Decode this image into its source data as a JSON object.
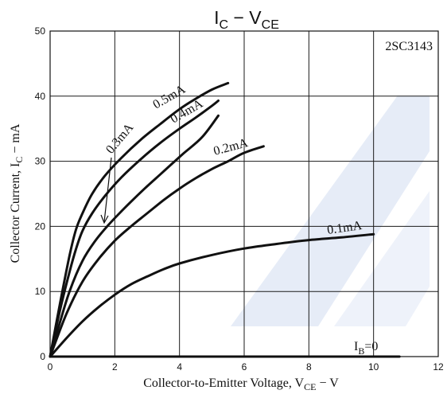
{
  "chart_data": {
    "type": "line",
    "title": "I_C − V_CE",
    "title_parts": {
      "main1": "I",
      "sub1": "C",
      "sep": " − ",
      "main2": "V",
      "sub2": "CE"
    },
    "part_number": "2SC3143",
    "xlabel_parts": {
      "main": "Collector-to-Emitter Voltage, V",
      "sub": "CE",
      "unit": " − V"
    },
    "ylabel_parts": {
      "main": "Collector Current, I",
      "sub": "C",
      "unit": " − mA"
    },
    "xlim": [
      0,
      12
    ],
    "ylim": [
      0,
      50
    ],
    "xticks": [
      "0",
      "2",
      "4",
      "6",
      "8",
      "10",
      "12"
    ],
    "yticks": [
      "0",
      "10",
      "20",
      "30",
      "40",
      "50"
    ],
    "grid": true,
    "series": [
      {
        "name": "0.5mA",
        "x": [
          0,
          0.3,
          0.6,
          0.8,
          1.0,
          1.3,
          1.7,
          2.2,
          2.8,
          3.4,
          4.0,
          4.5,
          5.0,
          5.5
        ],
        "y": [
          0,
          8,
          15.5,
          19.5,
          22,
          25,
          27.8,
          30.5,
          33.3,
          35.7,
          38,
          39.6,
          41,
          42
        ]
      },
      {
        "name": "0.4mA",
        "x": [
          0,
          0.3,
          0.6,
          0.8,
          1.0,
          1.3,
          1.7,
          2.2,
          2.8,
          3.4,
          4.0,
          4.5,
          5.0,
          5.2
        ],
        "y": [
          0,
          7,
          13,
          16.5,
          19.3,
          22,
          24.7,
          27.5,
          30.3,
          32.8,
          35,
          36.7,
          38.5,
          39.3
        ]
      },
      {
        "name": "0.3mA",
        "x": [
          0,
          0.3,
          0.6,
          1.0,
          1.4,
          1.8,
          2.3,
          2.9,
          3.5,
          4.1,
          4.7,
          5.2
        ],
        "y": [
          0,
          5.2,
          10,
          14.7,
          17.8,
          20.2,
          22.8,
          25.7,
          28.4,
          31.1,
          33.7,
          37
        ]
      },
      {
        "name": "0.2mA",
        "x": [
          0,
          0.5,
          1.0,
          1.5,
          2.0,
          2.5,
          3.0,
          3.5,
          4.0,
          4.5,
          5.0,
          5.5,
          6.0,
          6.6
        ],
        "y": [
          0,
          6.5,
          11.5,
          15,
          17.8,
          20,
          22,
          24,
          25.8,
          27.4,
          28.8,
          30,
          31.3,
          32.3
        ]
      },
      {
        "name": "0.1mA",
        "x": [
          0,
          0.5,
          1.0,
          1.5,
          2.0,
          2.5,
          3.0,
          3.5,
          4.0,
          5.0,
          6.0,
          7.0,
          8.0,
          9.0,
          10.0
        ],
        "y": [
          0,
          2.8,
          5.4,
          7.6,
          9.5,
          11.1,
          12.3,
          13.4,
          14.3,
          15.6,
          16.6,
          17.3,
          17.9,
          18.3,
          18.8
        ]
      },
      {
        "name": "I_B=0",
        "x": [
          0,
          10.8
        ],
        "y": [
          0,
          0
        ]
      }
    ],
    "curve_labels": {
      "b05": "0.5mA",
      "b04": "0.4mA",
      "b03": "0.3mA",
      "b02": "0.2mA",
      "b01": "0.1mA",
      "ib_main": "I",
      "ib_sub": "B",
      "ib_eq": "=0"
    }
  }
}
